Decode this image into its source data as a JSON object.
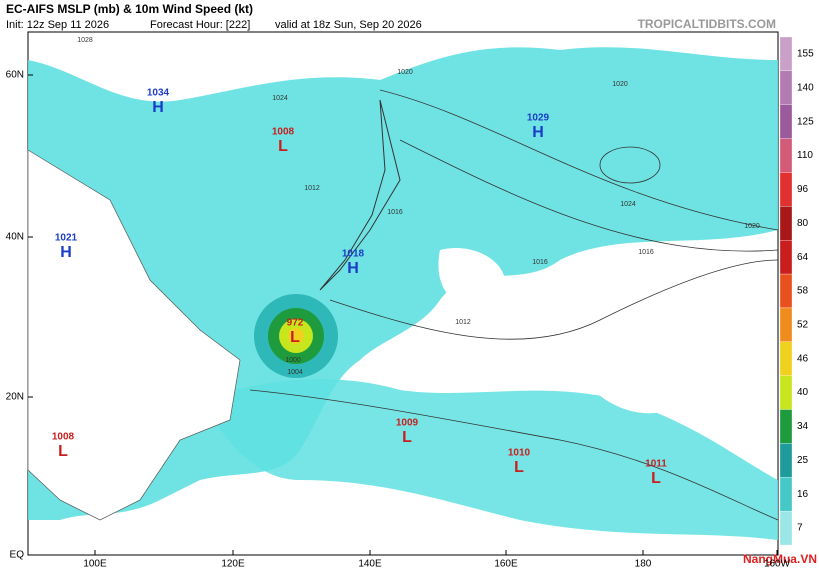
{
  "header": {
    "title": "EC-AIFS MSLP (mb) & 10m Wind Speed (kt)",
    "init": "Init: 12z Sep 11 2026",
    "forecast_hour": "Forecast Hour: [222]",
    "valid": "valid at 18z Sun, Sep 20 2026",
    "site": "TROPICALTIDBITS.COM"
  },
  "map": {
    "lat_labels": [
      "60N",
      "40N",
      "20N",
      "EQ"
    ],
    "lon_labels": [
      "100E",
      "120E",
      "140E",
      "160E",
      "180",
      "160W"
    ],
    "centers": [
      {
        "pressure": 1034,
        "type": "H"
      },
      {
        "pressure": 1008,
        "type": "L"
      },
      {
        "pressure": 1029,
        "type": "H"
      },
      {
        "pressure": 1021,
        "type": "H"
      },
      {
        "pressure": 1018,
        "type": "H"
      },
      {
        "pressure": 972,
        "type": "L"
      },
      {
        "pressure": 1009,
        "type": "L"
      },
      {
        "pressure": 1008,
        "type": "L"
      },
      {
        "pressure": 1010,
        "type": "L"
      },
      {
        "pressure": 1011,
        "type": "L"
      }
    ],
    "isobar_labels": [
      1028,
      1024,
      1020,
      1016,
      1012,
      1016,
      1020,
      1024,
      1020,
      1016,
      1012,
      1004,
      1000
    ]
  },
  "colorbar": {
    "ticks": [
      155,
      140,
      125,
      110,
      96,
      80,
      64,
      58,
      52,
      46,
      40,
      34,
      25,
      16,
      7
    ],
    "colors": [
      "#c8a0c8",
      "#b27cb2",
      "#9b5a9b",
      "#d35b7a",
      "#e03030",
      "#a81818",
      "#c81e1e",
      "#e8501e",
      "#f08c1e",
      "#f0d21e",
      "#c8e61e",
      "#1e9b3c",
      "#1e9b9b",
      "#46c8c8",
      "#9be6e6"
    ]
  },
  "watermark": "NangMua.VN"
}
